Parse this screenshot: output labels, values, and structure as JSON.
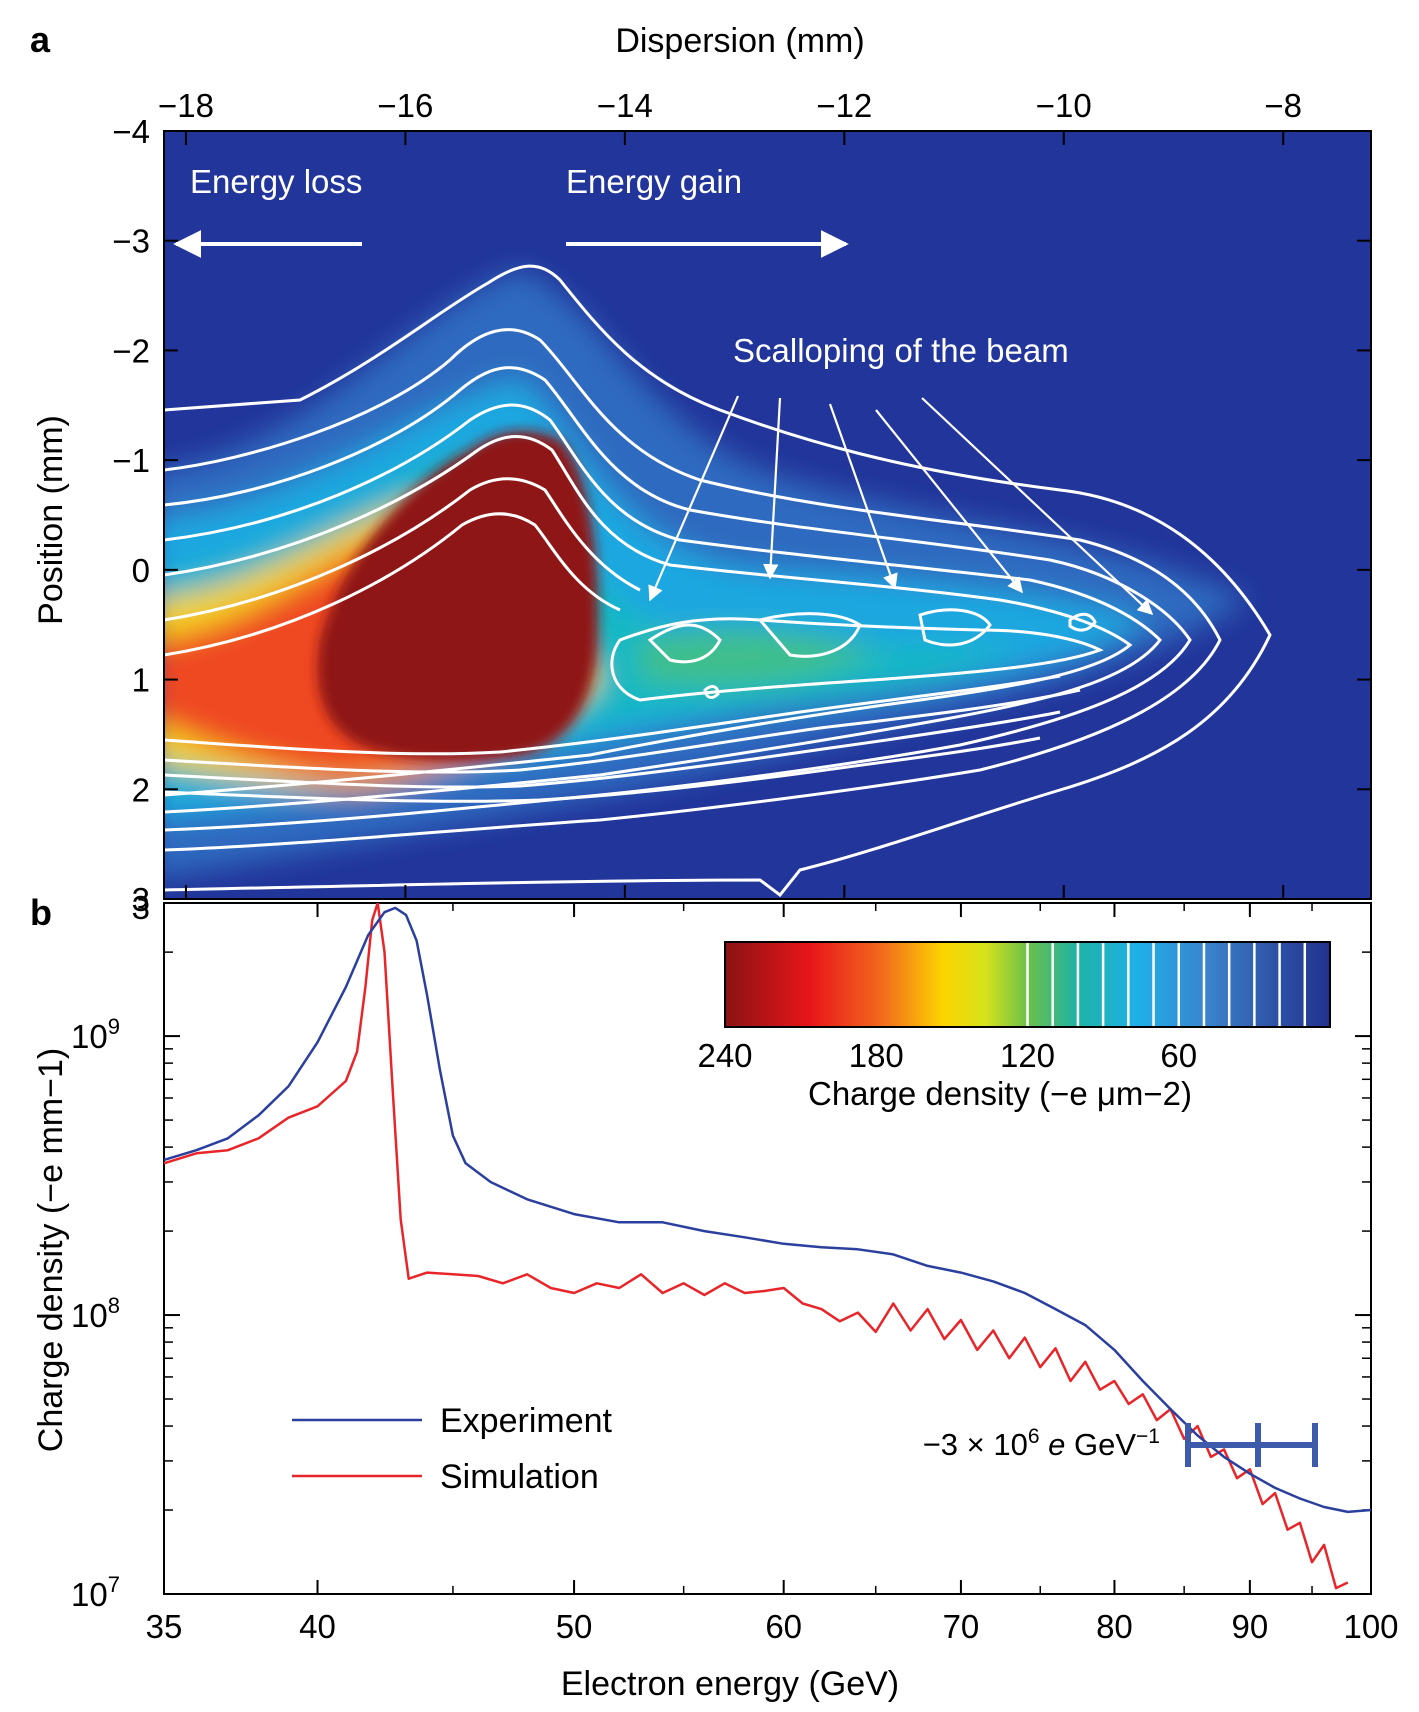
{
  "panel_labels": {
    "a": "a",
    "b": "b"
  },
  "colors": {
    "experiment": "#2b3f9e",
    "simulation": "#e8262a",
    "heatmap_bg": "#22359a",
    "contour": "#ffffff",
    "scalebar": "#3e5bab"
  },
  "chart_data": [
    {
      "id": "panel-a",
      "type": "heatmap",
      "title": "",
      "xlabel": "Dispersion (mm)",
      "ylabel": "Position (mm)",
      "xlim": [
        -18.2,
        -7.2
      ],
      "ylim": [
        -4,
        3
      ],
      "x_ticks": [
        -18,
        -16,
        -14,
        -12,
        -10,
        -8
      ],
      "x_tick_labels": [
        "−18",
        "−16",
        "−14",
        "−12",
        "−10",
        "−8"
      ],
      "y_ticks": [
        -4,
        -3,
        -2,
        -1,
        0,
        1,
        2,
        3
      ],
      "y_tick_labels": [
        "−4",
        "−3",
        "−2",
        "−1",
        "0",
        "1",
        "2",
        "3"
      ],
      "annotations": {
        "energy_loss": "Energy loss",
        "energy_gain": "Energy gain",
        "scalloping": "Scalloping of the beam"
      },
      "colorbar": {
        "label": "Charge density (−e μm−2)",
        "ticks": [
          240,
          180,
          120,
          60
        ],
        "tick_labels": [
          "240",
          "180",
          "120",
          "60"
        ],
        "range": [
          0,
          240
        ]
      }
    },
    {
      "id": "panel-b",
      "type": "line",
      "title": "",
      "xlabel": "Electron energy (GeV)",
      "ylabel": "Charge density (−e mm−1)",
      "xscale": "log",
      "yscale": "log",
      "xlim": [
        35,
        100
      ],
      "ylim": [
        10000000.0,
        3000000000.0
      ],
      "x_ticks": [
        35,
        40,
        50,
        60,
        70,
        80,
        90,
        100
      ],
      "x_tick_labels": [
        "35",
        "40",
        "50",
        "60",
        "70",
        "80",
        "90",
        "100"
      ],
      "y_ticks": [
        10000000.0,
        100000000.0,
        1000000000.0
      ],
      "y_tick_labels": [
        {
          "base": "10",
          "exp": "7"
        },
        {
          "base": "10",
          "exp": "8"
        },
        {
          "base": "10",
          "exp": "9"
        }
      ],
      "legend_position": "bottom-left",
      "series": [
        {
          "name": "Experiment",
          "x": [
            35,
            36,
            37,
            38,
            39,
            40,
            41,
            41.8,
            42.4,
            42.8,
            43.2,
            43.6,
            44.0,
            44.5,
            45.0,
            45.5,
            46.5,
            48,
            50,
            52,
            54,
            56,
            58,
            60,
            62,
            64,
            66,
            68,
            70,
            72,
            74,
            76,
            78,
            80,
            82,
            84,
            86,
            88,
            90,
            92,
            94,
            96,
            98,
            100
          ],
          "y": [
            360000000.0,
            390000000.0,
            430000000.0,
            520000000.0,
            660000000.0,
            950000000.0,
            1500000000.0,
            2300000000.0,
            2780000000.0,
            2880000000.0,
            2720000000.0,
            2200000000.0,
            1400000000.0,
            750000000.0,
            440000000.0,
            350000000.0,
            300000000.0,
            260000000.0,
            230000000.0,
            215000000.0,
            215000000.0,
            200000000.0,
            190000000.0,
            180000000.0,
            175000000.0,
            172000000.0,
            165000000.0,
            150000000.0,
            142000000.0,
            132000000.0,
            120000000.0,
            105000000.0,
            92000000.0,
            75000000.0,
            58000000.0,
            46000000.0,
            37000000.0,
            31000000.0,
            27000000.0,
            24000000.0,
            22000000.0,
            20500000.0,
            19700000.0,
            20000000.0
          ]
        },
        {
          "name": "Simulation",
          "x": [
            35,
            36,
            37,
            38,
            39,
            40,
            41,
            41.4,
            41.7,
            41.95,
            42.15,
            42.4,
            42.7,
            43.0,
            43.3,
            44,
            45,
            46,
            47,
            48,
            49,
            50,
            51,
            52,
            53,
            54,
            55,
            56,
            57,
            58,
            59,
            60,
            61,
            62,
            63,
            64,
            65,
            66,
            67,
            68,
            69,
            70,
            71,
            72,
            73,
            74,
            75,
            76,
            77,
            78,
            79,
            80,
            81,
            82,
            83,
            84,
            85,
            86,
            87,
            88,
            89,
            90,
            91,
            92,
            93,
            94,
            95,
            96,
            97,
            98
          ],
          "y": [
            350000000.0,
            380000000.0,
            390000000.0,
            430000000.0,
            510000000.0,
            560000000.0,
            690000000.0,
            880000000.0,
            1500000000.0,
            2600000000.0,
            3000000000.0,
            2000000000.0,
            650000000.0,
            220000000.0,
            135000000.0,
            142000000.0,
            140000000.0,
            138000000.0,
            130000000.0,
            140000000.0,
            125000000.0,
            120000000.0,
            130000000.0,
            125000000.0,
            140000000.0,
            120000000.0,
            130000000.0,
            118000000.0,
            130000000.0,
            120000000.0,
            122000000.0,
            125000000.0,
            110000000.0,
            105000000.0,
            95000000.0,
            102000000.0,
            87000000.0,
            110000000.0,
            88000000.0,
            105000000.0,
            82000000.0,
            96000000.0,
            75000000.0,
            88000000.0,
            70000000.0,
            83000000.0,
            65000000.0,
            76000000.0,
            58000000.0,
            68000000.0,
            54000000.0,
            58000000.0,
            48000000.0,
            52000000.0,
            42000000.0,
            46000000.0,
            36000000.0,
            40000000.0,
            31000000.0,
            33000000.0,
            26000000.0,
            28000000.0,
            21000000.0,
            23000000.0,
            17000000.0,
            18000000.0,
            13000000.0,
            15000000.0,
            10500000.0,
            11000000.0
          ]
        }
      ],
      "scalebar": {
        "label_prefix": "−3 × 10",
        "label_exp": "6",
        "label_suffix": " e GeV",
        "label_suffix_exp": "−1"
      }
    }
  ]
}
